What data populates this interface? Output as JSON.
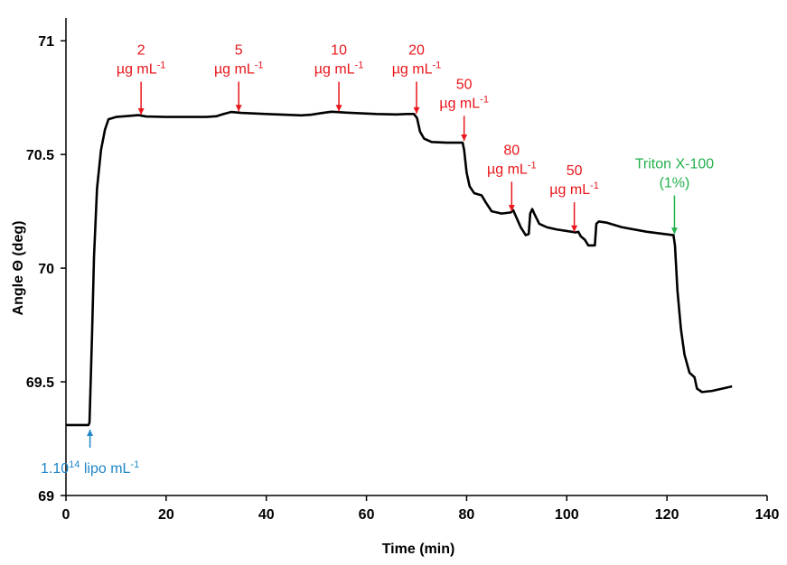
{
  "chart_data": {
    "type": "line",
    "xlabel": "Time (min)",
    "ylabel": "Angle Θ (deg)",
    "xlim": [
      0,
      140
    ],
    "ylim": [
      69,
      71.1
    ],
    "x_ticks": [
      0,
      20,
      40,
      60,
      80,
      100,
      120,
      140
    ],
    "y_ticks": [
      69,
      69.5,
      70,
      70.5,
      71
    ],
    "x_tick_labels": [
      "0",
      "20",
      "40",
      "60",
      "80",
      "100",
      "120",
      "140"
    ],
    "y_tick_labels": [
      "69",
      "69.5",
      "70",
      "70.5",
      "71"
    ],
    "grid": false,
    "series": [
      {
        "color": "#000000",
        "points": [
          [
            0,
            69.31
          ],
          [
            4.5,
            69.31
          ],
          [
            4.7,
            69.32
          ],
          [
            5.2,
            69.7
          ],
          [
            5.6,
            70.05
          ],
          [
            6.2,
            70.35
          ],
          [
            7.0,
            70.52
          ],
          [
            7.8,
            70.61
          ],
          [
            8.5,
            70.655
          ],
          [
            10,
            70.665
          ],
          [
            14.5,
            70.673
          ],
          [
            16,
            70.667
          ],
          [
            20,
            70.665
          ],
          [
            28,
            70.665
          ],
          [
            30,
            70.668
          ],
          [
            31.5,
            70.678
          ],
          [
            33,
            70.687
          ],
          [
            35,
            70.683
          ],
          [
            40,
            70.678
          ],
          [
            47,
            70.672
          ],
          [
            49,
            70.675
          ],
          [
            51,
            70.682
          ],
          [
            53,
            70.688
          ],
          [
            56,
            70.684
          ],
          [
            62,
            70.678
          ],
          [
            66,
            70.676
          ],
          [
            68,
            70.678
          ],
          [
            69.5,
            70.678
          ],
          [
            70.1,
            70.66
          ],
          [
            70.7,
            70.6
          ],
          [
            71.5,
            70.57
          ],
          [
            73,
            70.555
          ],
          [
            76,
            70.552
          ],
          [
            79.2,
            70.552
          ],
          [
            79.5,
            70.52
          ],
          [
            80,
            70.42
          ],
          [
            80.6,
            70.36
          ],
          [
            81.5,
            70.33
          ],
          [
            83,
            70.32
          ],
          [
            83.8,
            70.29
          ],
          [
            85,
            70.25
          ],
          [
            87,
            70.24
          ],
          [
            88.8,
            70.245
          ],
          [
            89.3,
            70.255
          ],
          [
            90,
            70.22
          ],
          [
            90.8,
            70.18
          ],
          [
            91.8,
            70.145
          ],
          [
            92.4,
            70.15
          ],
          [
            92.7,
            70.24
          ],
          [
            93.1,
            70.26
          ],
          [
            93.5,
            70.24
          ],
          [
            94.5,
            70.195
          ],
          [
            96,
            70.18
          ],
          [
            98,
            70.17
          ],
          [
            101,
            70.16
          ],
          [
            101.8,
            70.157
          ],
          [
            102.3,
            70.16
          ],
          [
            102.8,
            70.14
          ],
          [
            103.6,
            70.125
          ],
          [
            104.3,
            70.1
          ],
          [
            105.1,
            70.1
          ],
          [
            105.6,
            70.1
          ],
          [
            105.9,
            70.195
          ],
          [
            106.4,
            70.205
          ],
          [
            108,
            70.2
          ],
          [
            111,
            70.18
          ],
          [
            116,
            70.16
          ],
          [
            121.3,
            70.145
          ],
          [
            121.6,
            70.1
          ],
          [
            122.1,
            69.9
          ],
          [
            122.8,
            69.73
          ],
          [
            123.5,
            69.62
          ],
          [
            124.5,
            69.54
          ],
          [
            125.5,
            69.52
          ],
          [
            126,
            69.47
          ],
          [
            127,
            69.455
          ],
          [
            129,
            69.46
          ],
          [
            131,
            69.47
          ],
          [
            133,
            69.48
          ]
        ]
      }
    ],
    "annotations": [
      {
        "x": 4.8,
        "y_tip": 69.29,
        "y_tail": 69.21,
        "direction": "up",
        "color": "#1f86c8",
        "base": "1.10",
        "sup": "14",
        "tail": " lipo mL",
        "tail_sup": "-1"
      },
      {
        "x": 15,
        "y_tip": 70.675,
        "y_tail": 70.82,
        "direction": "down",
        "color": "#e8161b",
        "line1": "2",
        "line2": "µg mL",
        "line2_sup": "-1"
      },
      {
        "x": 34.5,
        "y_tip": 70.69,
        "y_tail": 70.82,
        "direction": "down",
        "color": "#e8161b",
        "line1": "5",
        "line2": "µg mL",
        "line2_sup": "-1"
      },
      {
        "x": 54.5,
        "y_tip": 70.69,
        "y_tail": 70.82,
        "direction": "down",
        "color": "#e8161b",
        "line1": "10",
        "line2": "µg mL",
        "line2_sup": "-1"
      },
      {
        "x": 70,
        "y_tip": 70.68,
        "y_tail": 70.82,
        "direction": "down",
        "color": "#e8161b",
        "line1": "20",
        "line2": "µg mL",
        "line2_sup": "-1"
      },
      {
        "x": 79.5,
        "y_tip": 70.56,
        "y_tail": 70.67,
        "direction": "down",
        "color": "#e8161b",
        "line1": "50",
        "line2": "µg mL",
        "line2_sup": "-1"
      },
      {
        "x": 89,
        "y_tip": 70.25,
        "y_tail": 70.38,
        "direction": "down",
        "color": "#e8161b",
        "line1": "80",
        "line2": "µg mL",
        "line2_sup": "-1"
      },
      {
        "x": 101.5,
        "y_tip": 70.16,
        "y_tail": 70.29,
        "direction": "down",
        "color": "#e8161b",
        "line1": "50",
        "line2": "µg mL",
        "line2_sup": "-1"
      },
      {
        "x": 121.5,
        "y_tip": 70.15,
        "y_tail": 70.32,
        "direction": "down",
        "color": "#22b14c",
        "line1": "Triton X-100",
        "line2": "(1%)",
        "line2_sup": ""
      }
    ]
  }
}
